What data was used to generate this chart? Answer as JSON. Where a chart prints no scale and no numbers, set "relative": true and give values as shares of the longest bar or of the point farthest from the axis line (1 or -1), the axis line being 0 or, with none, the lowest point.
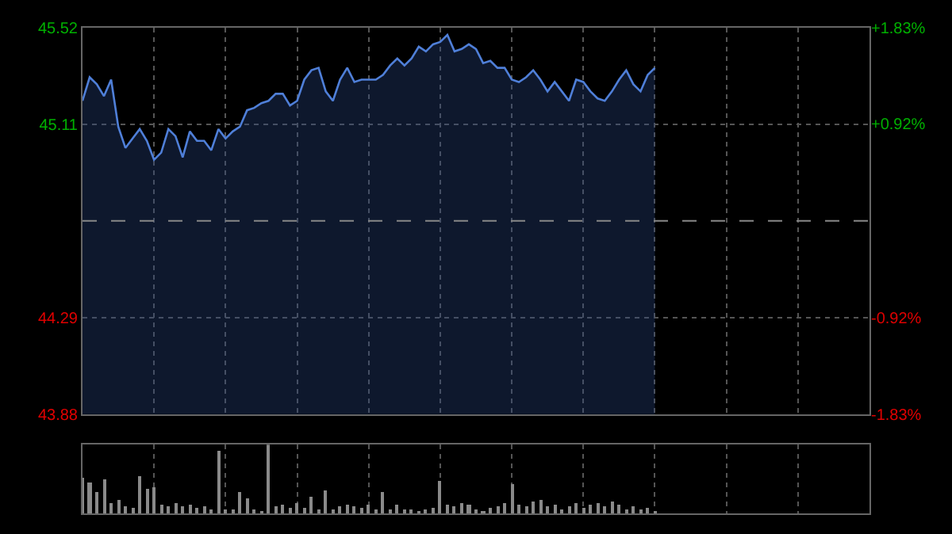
{
  "chart_data": [
    {
      "type": "area",
      "categories": [
        null,
        null,
        null,
        null,
        null,
        null,
        null,
        null,
        null,
        null,
        null,
        null,
        null,
        null,
        null,
        null,
        null,
        null,
        null,
        null,
        null,
        null,
        null,
        null,
        null,
        null,
        null,
        null,
        null,
        null,
        null,
        null,
        null,
        null,
        null,
        null,
        null,
        null,
        null,
        null,
        null,
        null,
        null,
        null,
        null,
        null,
        null,
        null,
        null,
        null,
        null,
        null,
        null,
        null,
        null,
        null,
        null,
        null,
        null,
        null,
        null,
        null,
        null,
        null,
        null,
        null,
        null,
        null,
        null,
        null,
        null,
        null,
        null,
        null,
        null,
        null,
        null,
        null,
        null,
        null,
        null,
        null,
        null,
        null,
        null,
        null,
        null,
        null,
        null,
        null,
        null,
        null,
        null,
        null,
        null,
        null,
        null,
        null,
        null,
        null,
        null,
        null,
        null,
        null,
        null,
        null,
        null,
        null,
        null,
        null,
        null
      ],
      "series": [
        {
          "color": "#4f7fd8",
          "values": [
            45.21,
            45.31,
            45.28,
            45.23,
            45.3,
            45.1,
            45.01,
            45.05,
            45.09,
            45.04,
            44.96,
            44.99,
            45.09,
            45.06,
            44.97,
            45.08,
            45.04,
            45.04,
            45.0,
            45.09,
            45.05,
            45.08,
            45.1,
            45.17,
            45.18,
            45.2,
            45.21,
            45.24,
            45.24,
            45.19,
            45.21,
            45.3,
            45.34,
            45.35,
            45.25,
            45.21,
            45.3,
            45.35,
            45.29,
            45.3,
            45.3,
            45.3,
            45.32,
            45.36,
            45.39,
            45.36,
            45.39,
            45.44,
            45.42,
            45.45,
            45.46,
            45.49,
            45.42,
            45.43,
            45.45,
            45.43,
            45.37,
            45.38,
            45.35,
            45.35,
            45.3,
            45.29,
            45.31,
            45.34,
            45.3,
            45.25,
            45.29,
            45.25,
            45.21,
            45.3,
            45.29,
            45.25,
            45.22,
            45.21,
            45.25,
            45.3,
            45.34,
            45.28,
            45.25,
            45.32,
            45.35,
            null,
            null,
            null,
            null,
            null,
            null,
            null,
            null,
            null,
            null,
            null,
            null,
            null,
            null,
            null,
            null,
            null,
            null,
            null,
            null,
            null,
            null,
            null,
            null,
            null,
            null,
            null,
            null,
            null,
            null
          ]
        }
      ],
      "ylim": [
        43.88,
        45.52
      ],
      "yticks": [
        43.88,
        44.29,
        45.11,
        45.52
      ],
      "y2lim": [
        -1.83,
        1.83
      ],
      "y2ticks": [
        {
          "value": -1.83,
          "label": "-1.83%"
        },
        {
          "value": -0.92,
          "label": "-0.92%"
        },
        {
          "value": 0.92,
          "label": "+0.92%"
        },
        {
          "value": 1.83,
          "label": "+1.83%"
        }
      ],
      "ref_lines": [
        {
          "axis": "y",
          "value": 44.7,
          "line_style": "dashed"
        }
      ],
      "grid": true,
      "tick_labels": "y"
    },
    {
      "type": "bar",
      "relative": true,
      "color": "#8a8a8a",
      "grid": "x",
      "tick_labels": false,
      "categories": [
        null,
        null,
        null,
        null,
        null,
        null,
        null,
        null,
        null,
        null,
        null,
        null,
        null,
        null,
        null,
        null,
        null,
        null,
        null,
        null,
        null,
        null,
        null,
        null,
        null,
        null,
        null,
        null,
        null,
        null,
        null,
        null,
        null,
        null,
        null,
        null,
        null,
        null,
        null,
        null,
        null,
        null,
        null,
        null,
        null,
        null,
        null,
        null,
        null,
        null,
        null,
        null,
        null,
        null,
        null,
        null,
        null,
        null,
        null,
        null,
        null,
        null,
        null,
        null,
        null,
        null,
        null,
        null,
        null,
        null,
        null,
        null,
        null,
        null,
        null,
        null,
        null,
        null,
        null,
        null,
        null,
        null,
        null,
        null,
        null,
        null,
        null,
        null,
        null,
        null,
        null,
        null,
        null,
        null,
        null,
        null,
        null,
        null,
        null,
        null,
        null,
        null,
        null,
        null,
        null,
        null,
        null,
        null,
        null,
        null,
        null
      ],
      "values": [
        0.52,
        0.45,
        0.3,
        0.49,
        0.15,
        0.2,
        0.1,
        0.08,
        0.55,
        0.36,
        0.39,
        0.12,
        0.1,
        0.14,
        0.1,
        0.12,
        0.08,
        0.1,
        0.05,
        0.91,
        0.06,
        0.05,
        0.31,
        0.21,
        0.06,
        0.04,
        1.0,
        0.1,
        0.12,
        0.08,
        0.15,
        0.08,
        0.25,
        0.05,
        0.33,
        0.06,
        0.1,
        0.12,
        0.1,
        0.08,
        0.12,
        0.06,
        0.31,
        0.05,
        0.12,
        0.05,
        0.06,
        0.04,
        0.05,
        0.08,
        0.48,
        0.12,
        0.1,
        0.14,
        0.12,
        0.06,
        0.04,
        0.08,
        0.1,
        0.15,
        0.43,
        0.12,
        0.1,
        0.18,
        0.2,
        0.1,
        0.12,
        0.06,
        0.1,
        0.14,
        0.08,
        0.12,
        0.15,
        0.1,
        0.17,
        0.12,
        0.06,
        0.1,
        0.05,
        0.08,
        0.04,
        null,
        null,
        null,
        null,
        null,
        null,
        null,
        null,
        null,
        null,
        null,
        null,
        null,
        null,
        null,
        null,
        null,
        null,
        null,
        null,
        null,
        null,
        null,
        null,
        null,
        null,
        null,
        null,
        null,
        null
      ]
    }
  ]
}
